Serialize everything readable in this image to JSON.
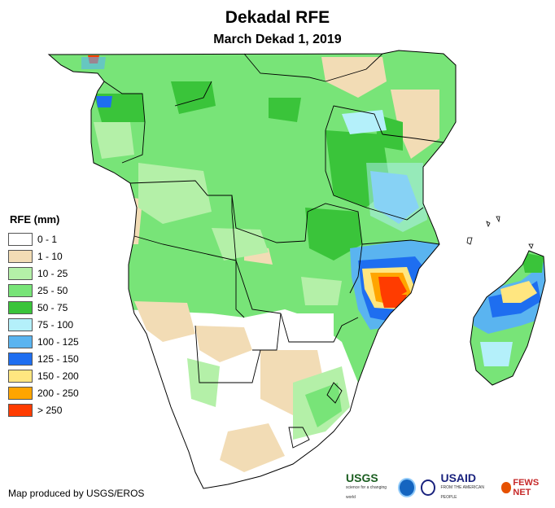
{
  "title": "Dekadal RFE",
  "subtitle": "March Dekad 1, 2019",
  "legend": {
    "title": "RFE (mm)",
    "items": [
      {
        "label": "0 - 1",
        "color": "#ffffff"
      },
      {
        "label": "1 - 10",
        "color": "#f2dcb5"
      },
      {
        "label": "10 - 25",
        "color": "#b4f0a8"
      },
      {
        "label": "25 - 50",
        "color": "#78e478"
      },
      {
        "label": "50 - 75",
        "color": "#3ac43a"
      },
      {
        "label": "75 - 100",
        "color": "#b4f0fa"
      },
      {
        "label": "100 - 125",
        "color": "#5ab4f0"
      },
      {
        "label": "125 - 150",
        "color": "#1e6ef0"
      },
      {
        "label": "150 - 200",
        "color": "#ffe680"
      },
      {
        "label": "200 - 250",
        "color": "#ffa500"
      },
      {
        "label": "> 250",
        "color": "#ff3c00"
      }
    ]
  },
  "credit": "Map produced by USGS/EROS",
  "logos": {
    "usgs": "USGS",
    "usgs_tagline": "science for a changing world",
    "usaid": "USAID",
    "usaid_tagline": "FROM THE AMERICAN PEOPLE",
    "fews": "FEWS NET"
  },
  "colors": {
    "border": "#000000",
    "background": "#ffffff"
  }
}
